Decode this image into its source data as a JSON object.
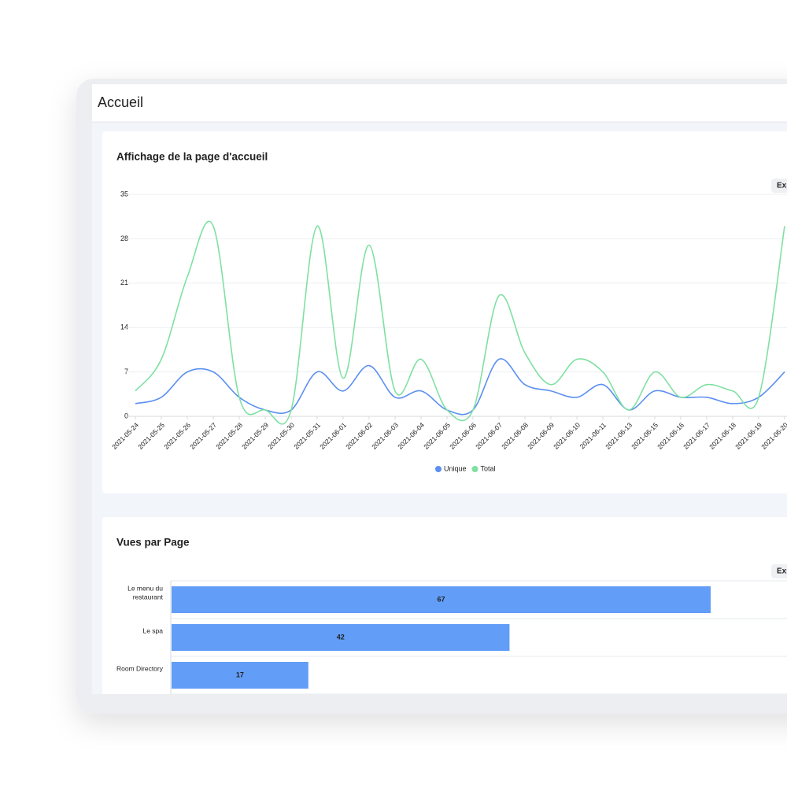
{
  "header": {
    "title": "Accueil"
  },
  "chart_data": [
    {
      "type": "line",
      "title": "Affichage de la page d'accueil",
      "button": "Exp",
      "categories": [
        "2021-05-24",
        "2021-05-25",
        "2021-05-26",
        "2021-05-27",
        "2021-05-28",
        "2021-05-29",
        "2021-05-30",
        "2021-05-31",
        "2021-06-01",
        "2021-06-02",
        "2021-06-03",
        "2021-06-04",
        "2021-06-05",
        "2021-06-06",
        "2021-06-07",
        "2021-06-08",
        "2021-06-09",
        "2021-06-10",
        "2021-06-11",
        "2021-06-13",
        "2021-06-15",
        "2021-06-16",
        "2021-06-17",
        "2021-06-18",
        "2021-06-19",
        "2021-06-20"
      ],
      "series": [
        {
          "name": "Unique",
          "color": "#5b8ff0",
          "values": [
            2,
            3,
            7,
            7,
            3,
            1,
            1,
            7,
            4,
            8,
            3,
            4,
            1,
            1,
            9,
            5,
            4,
            3,
            5,
            1,
            4,
            3,
            3,
            2,
            3,
            7
          ]
        },
        {
          "name": "Total",
          "color": "#7fe0a2",
          "values": [
            4,
            9,
            22,
            30,
            3,
            1,
            1,
            30,
            6,
            27,
            4,
            9,
            1,
            1,
            19,
            10,
            5,
            9,
            7,
            1,
            7,
            3,
            5,
            4,
            3,
            30
          ]
        }
      ],
      "ylim": [
        0,
        35
      ],
      "yticks": [
        0,
        7,
        14,
        21,
        28,
        35
      ],
      "grid": true,
      "legend": "bottom"
    },
    {
      "type": "hbar",
      "title": "Vues par Page",
      "button": "Exp",
      "categories": [
        "Le menu du restaurant",
        "Le spa",
        "Room Directory"
      ],
      "values": [
        67,
        42,
        17
      ],
      "color": "#629df8",
      "xlim": [
        0,
        80
      ]
    }
  ]
}
